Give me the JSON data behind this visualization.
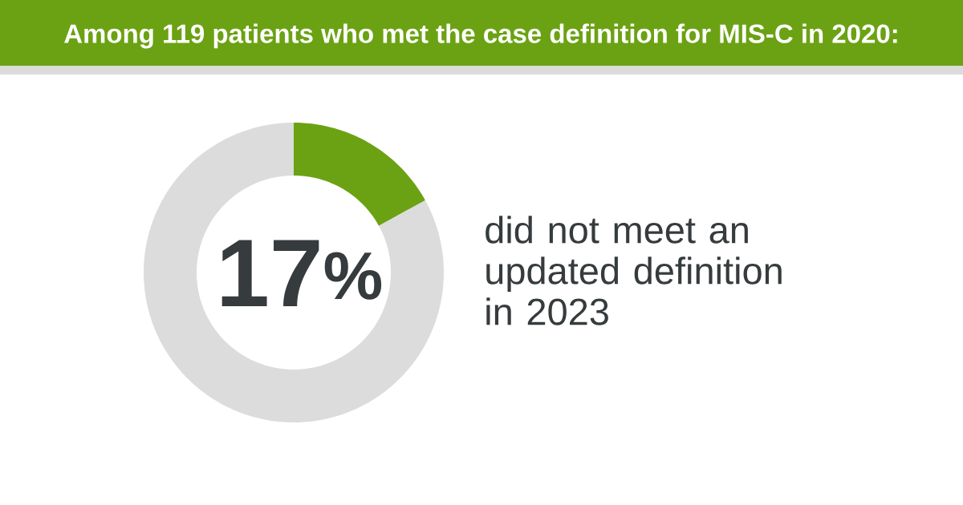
{
  "chart_data": {
    "type": "donut",
    "title": "Among 119 patients who met the case definition for MIS-C in 2020:",
    "categories": [
      null,
      null
    ],
    "values": [
      17,
      83
    ],
    "colors": [
      "#6ba213",
      "#dcdcdc"
    ],
    "annotations": [
      "17$^{%}$",
      "did not meet an updated definition in 2023"
    ]
  }
}
